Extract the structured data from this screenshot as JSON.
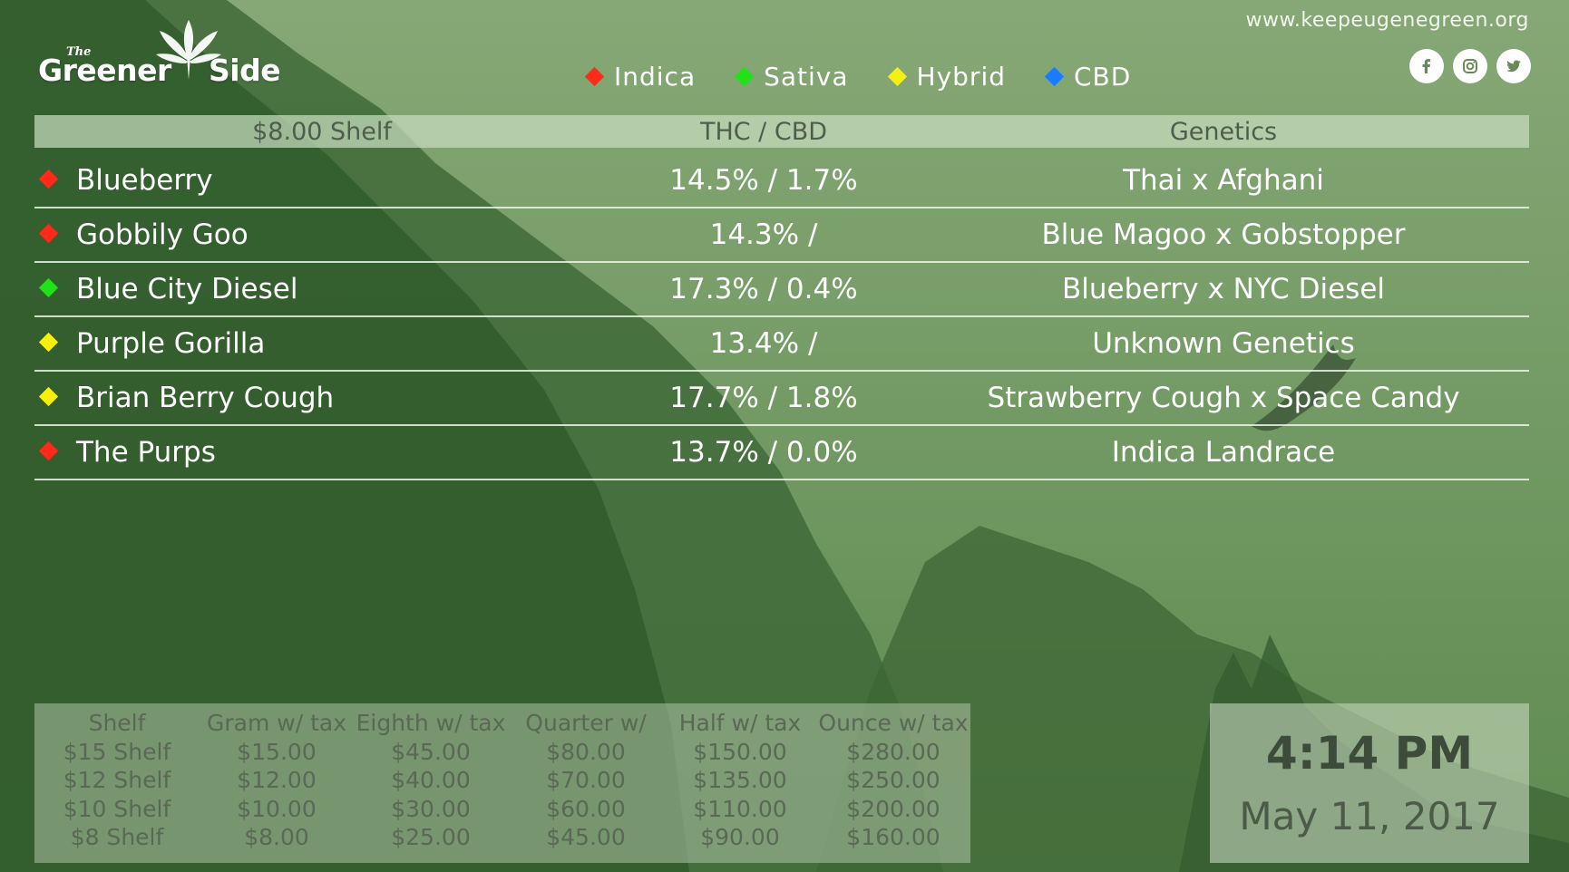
{
  "brand": {
    "logo_the": "The",
    "logo_word1": "Greener",
    "logo_word2": "Side"
  },
  "website": "www.keepeugenegreen.org",
  "social": [
    {
      "icon": "facebook-icon"
    },
    {
      "icon": "instagram-icon"
    },
    {
      "icon": "twitter-icon"
    }
  ],
  "legend": [
    {
      "label": "Indica",
      "color": "#ff2a1a"
    },
    {
      "label": "Sativa",
      "color": "#22e01a"
    },
    {
      "label": "Hybrid",
      "color": "#f5f010"
    },
    {
      "label": "CBD",
      "color": "#1a7bff"
    }
  ],
  "menu": {
    "headers": [
      "$8.00 Shelf",
      "THC / CBD",
      "Genetics"
    ],
    "rows": [
      {
        "type": "Indica",
        "color": "#ff2a1a",
        "name": "Blueberry",
        "thc_cbd": "14.5% / 1.7%",
        "genetics": "Thai x Afghani"
      },
      {
        "type": "Indica",
        "color": "#ff2a1a",
        "name": "Gobbily Goo",
        "thc_cbd": "14.3% /",
        "genetics": "Blue Magoo x Gobstopper"
      },
      {
        "type": "Sativa",
        "color": "#22e01a",
        "name": "Blue City Diesel",
        "thc_cbd": "17.3% / 0.4%",
        "genetics": "Blueberry x NYC Diesel"
      },
      {
        "type": "Hybrid",
        "color": "#f5f010",
        "name": "Purple Gorilla",
        "thc_cbd": "13.4% /",
        "genetics": "Unknown Genetics"
      },
      {
        "type": "Hybrid",
        "color": "#f5f010",
        "name": "Brian Berry Cough",
        "thc_cbd": "17.7% / 1.8%",
        "genetics": "Strawberry Cough x Space Candy"
      },
      {
        "type": "Indica",
        "color": "#ff2a1a",
        "name": "The Purps",
        "thc_cbd": "13.7% / 0.0%",
        "genetics": "Indica Landrace"
      }
    ]
  },
  "prices": {
    "headers": [
      "Shelf",
      "Gram w/ tax",
      "Eighth w/ tax",
      "Quarter w/",
      "Half w/ tax",
      "Ounce w/ tax"
    ],
    "rows": [
      [
        "$15 Shelf",
        "$15.00",
        "$45.00",
        "$80.00",
        "$150.00",
        "$280.00"
      ],
      [
        "$12 Shelf",
        "$12.00",
        "$40.00",
        "$70.00",
        "$135.00",
        "$250.00"
      ],
      [
        "$10 Shelf",
        "$10.00",
        "$30.00",
        "$60.00",
        "$110.00",
        "$200.00"
      ],
      [
        "$8 Shelf",
        "$8.00",
        "$25.00",
        "$45.00",
        "$90.00",
        "$160.00"
      ]
    ]
  },
  "clock": {
    "time": "4:14 PM",
    "date": "May 11, 2017"
  }
}
